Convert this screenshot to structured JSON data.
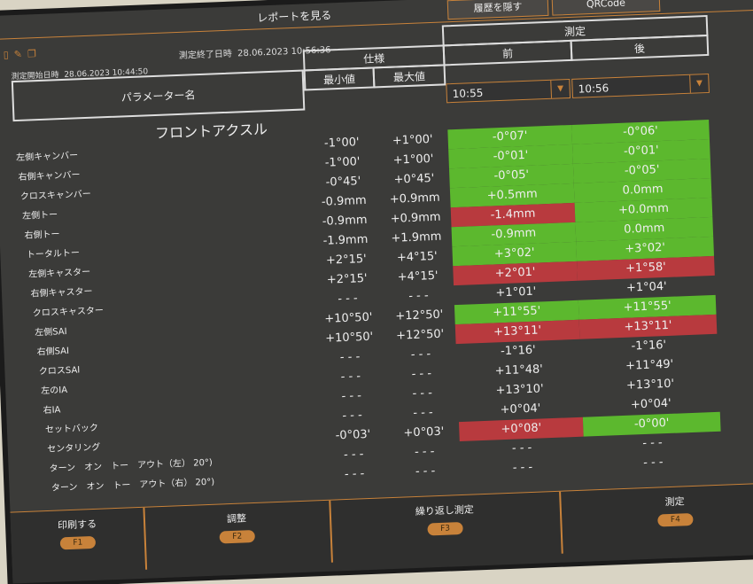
{
  "header": {
    "title": "レポートを見る",
    "hide_history": "履歴を隠す",
    "qrcode": "QRCode",
    "start_label": "測定開始日時",
    "start_value": "28.06.2023 10:44:50",
    "end_label": "測定終了日時",
    "end_value": "28.06.2023 10:56:36"
  },
  "icons": [
    "document-icon",
    "edit-icon",
    "copy-icon"
  ],
  "columns": {
    "param": "パラメーター名",
    "spec": "仕様",
    "min": "最小値",
    "max": "最大値",
    "measure": "測定",
    "before": "前",
    "after": "後"
  },
  "selects": {
    "before": "10:55",
    "after": "10:56"
  },
  "section": "フロントアクスル",
  "colors": {
    "ok": "#5cb82e",
    "ng": "#b83a3e",
    "accent": "#c8823a"
  },
  "rows": [
    {
      "name": "左側キャンバー",
      "min": "-1°00'",
      "max": "+1°00'",
      "before": "-0°07'",
      "after": "-0°06'",
      "bs": "green",
      "as": "green"
    },
    {
      "name": "右側キャンバー",
      "min": "-1°00'",
      "max": "+1°00'",
      "before": "-0°01'",
      "after": "-0°01'",
      "bs": "green",
      "as": "green"
    },
    {
      "name": "クロスキャンバー",
      "min": "-0°45'",
      "max": "+0°45'",
      "before": "-0°05'",
      "after": "-0°05'",
      "bs": "green",
      "as": "green"
    },
    {
      "name": "左側トー",
      "min": "-0.9mm",
      "max": "+0.9mm",
      "before": "+0.5mm",
      "after": "0.0mm",
      "bs": "green",
      "as": "green"
    },
    {
      "name": "右側トー",
      "min": "-0.9mm",
      "max": "+0.9mm",
      "before": "-1.4mm",
      "after": "+0.0mm",
      "bs": "red",
      "as": "green"
    },
    {
      "name": "トータルトー",
      "min": "-1.9mm",
      "max": "+1.9mm",
      "before": "-0.9mm",
      "after": "0.0mm",
      "bs": "green",
      "as": "green"
    },
    {
      "name": "左側キャスター",
      "min": "+2°15'",
      "max": "+4°15'",
      "before": "+3°02'",
      "after": "+3°02'",
      "bs": "green",
      "as": "green"
    },
    {
      "name": "右側キャスター",
      "min": "+2°15'",
      "max": "+4°15'",
      "before": "+2°01'",
      "after": "+1°58'",
      "bs": "red",
      "as": "red"
    },
    {
      "name": "クロスキャスター",
      "min": "- - -",
      "max": "- - -",
      "before": "+1°01'",
      "after": "+1°04'",
      "bs": "",
      "as": ""
    },
    {
      "name": "左側SAI",
      "min": "+10°50'",
      "max": "+12°50'",
      "before": "+11°55'",
      "after": "+11°55'",
      "bs": "green",
      "as": "green"
    },
    {
      "name": "右側SAI",
      "min": "+10°50'",
      "max": "+12°50'",
      "before": "+13°11'",
      "after": "+13°11'",
      "bs": "red",
      "as": "red"
    },
    {
      "name": "クロスSAI",
      "min": "- - -",
      "max": "- - -",
      "before": "-1°16'",
      "after": "-1°16'",
      "bs": "",
      "as": ""
    },
    {
      "name": "左のIA",
      "min": "- - -",
      "max": "- - -",
      "before": "+11°48'",
      "after": "+11°49'",
      "bs": "",
      "as": ""
    },
    {
      "name": "右IA",
      "min": "- - -",
      "max": "- - -",
      "before": "+13°10'",
      "after": "+13°10'",
      "bs": "",
      "as": ""
    },
    {
      "name": "セットバック",
      "min": "- - -",
      "max": "- - -",
      "before": "+0°04'",
      "after": "+0°04'",
      "bs": "",
      "as": ""
    },
    {
      "name": "センタリング",
      "min": "-0°03'",
      "max": "+0°03'",
      "before": "+0°08'",
      "after": "-0°00'",
      "bs": "red",
      "as": "green"
    },
    {
      "name": "ターン　オン　トー　アウト（左） 20°)",
      "min": "- - -",
      "max": "- - -",
      "before": "- - -",
      "after": "- - -",
      "bs": "",
      "as": ""
    },
    {
      "name": "ターン　オン　トー　アウト（右） 20°)",
      "min": "- - -",
      "max": "- - -",
      "before": "- - -",
      "after": "- - -",
      "bs": "",
      "as": ""
    }
  ],
  "footer": [
    {
      "label": "印刷する",
      "key": "F1"
    },
    {
      "label": "調整",
      "key": "F2"
    },
    {
      "label": "繰り返し測定",
      "key": "F3"
    },
    {
      "label": "測定",
      "key": "F4"
    }
  ]
}
